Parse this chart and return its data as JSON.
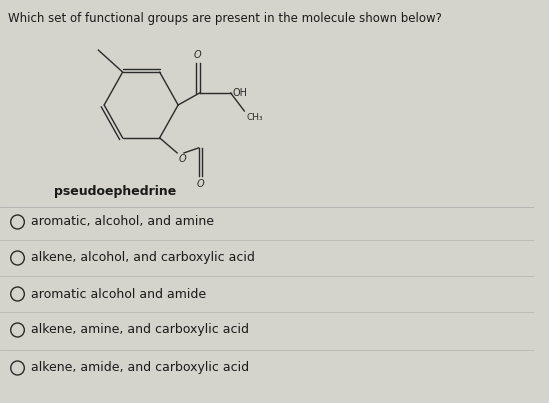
{
  "title": "Which set of functional groups are present in the molecule shown below?",
  "molecule_label": "pseudoephedrine",
  "options": [
    "aromatic, alcohol, and amine",
    "alkene, alcohol, and carboxylic acid",
    "aromatic alcohol and amide",
    "alkene, amine, and carboxylic acid",
    "alkene, amide, and carboxylic acid"
  ],
  "bg_color": "#d4d4cc",
  "text_color": "#1a1a1a",
  "title_fontsize": 8.5,
  "option_fontsize": 9.0,
  "molecule_label_fontsize": 9.0
}
